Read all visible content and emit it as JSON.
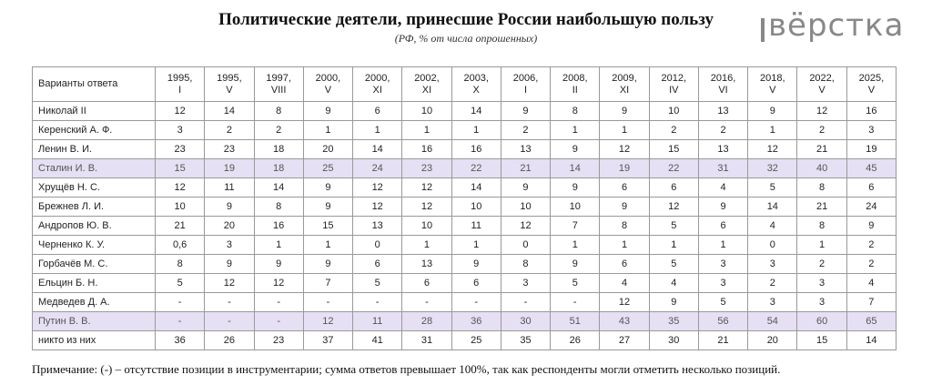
{
  "header": {
    "title": "Политические деятели, принесшие России наибольшую пользу",
    "subtitle": "(РФ, % от числа опрошенных)",
    "logo": "вёрстка"
  },
  "table": {
    "corner": "Варианты ответа",
    "columns": [
      {
        "year": "1995,",
        "wave": "I"
      },
      {
        "year": "1995,",
        "wave": "V"
      },
      {
        "year": "1997,",
        "wave": "VIII"
      },
      {
        "year": "2000,",
        "wave": "V"
      },
      {
        "year": "2000,",
        "wave": "XI"
      },
      {
        "year": "2002,",
        "wave": "XI"
      },
      {
        "year": "2003,",
        "wave": "X"
      },
      {
        "year": "2006,",
        "wave": "I"
      },
      {
        "year": "2008,",
        "wave": "II"
      },
      {
        "year": "2009,",
        "wave": "XI"
      },
      {
        "year": "2012,",
        "wave": "IV"
      },
      {
        "year": "2016,",
        "wave": "VI"
      },
      {
        "year": "2018,",
        "wave": "V"
      },
      {
        "year": "2022,",
        "wave": "V"
      },
      {
        "year": "2025,",
        "wave": "V"
      }
    ],
    "rows": [
      {
        "name": "Николай II",
        "highlight": false,
        "cells": [
          "12",
          "14",
          "8",
          "9",
          "6",
          "10",
          "14",
          "9",
          "8",
          "9",
          "10",
          "13",
          "9",
          "12",
          "16"
        ]
      },
      {
        "name": "Керенский А. Ф.",
        "highlight": false,
        "cells": [
          "3",
          "2",
          "2",
          "1",
          "1",
          "1",
          "1",
          "2",
          "1",
          "1",
          "2",
          "2",
          "1",
          "2",
          "3"
        ]
      },
      {
        "name": "Ленин В. И.",
        "highlight": false,
        "cells": [
          "23",
          "23",
          "18",
          "20",
          "14",
          "16",
          "16",
          "13",
          "9",
          "12",
          "15",
          "13",
          "12",
          "21",
          "19"
        ]
      },
      {
        "name": "Сталин И. В.",
        "highlight": true,
        "cells": [
          "15",
          "19",
          "18",
          "25",
          "24",
          "23",
          "22",
          "21",
          "14",
          "19",
          "22",
          "31",
          "32",
          "40",
          "45"
        ]
      },
      {
        "name": "Хрущёв Н. С.",
        "highlight": false,
        "cells": [
          "12",
          "11",
          "14",
          "9",
          "12",
          "12",
          "14",
          "9",
          "9",
          "6",
          "6",
          "4",
          "5",
          "8",
          "6"
        ]
      },
      {
        "name": "Брежнев Л. И.",
        "highlight": false,
        "cells": [
          "10",
          "9",
          "8",
          "9",
          "12",
          "12",
          "10",
          "10",
          "10",
          "9",
          "12",
          "9",
          "14",
          "21",
          "24"
        ]
      },
      {
        "name": "Андропов Ю. В.",
        "highlight": false,
        "cells": [
          "21",
          "20",
          "16",
          "15",
          "13",
          "10",
          "11",
          "12",
          "7",
          "8",
          "5",
          "6",
          "4",
          "8",
          "9"
        ]
      },
      {
        "name": "Черненко К. У.",
        "highlight": false,
        "cells": [
          "0,6",
          "3",
          "1",
          "1",
          "0",
          "1",
          "1",
          "0",
          "1",
          "1",
          "1",
          "1",
          "0",
          "1",
          "2"
        ]
      },
      {
        "name": "Горбачёв М. С.",
        "highlight": false,
        "cells": [
          "8",
          "9",
          "9",
          "9",
          "6",
          "13",
          "9",
          "8",
          "9",
          "6",
          "5",
          "3",
          "3",
          "2",
          "2"
        ]
      },
      {
        "name": "Ельцин Б. Н.",
        "highlight": false,
        "cells": [
          "5",
          "12",
          "12",
          "7",
          "5",
          "6",
          "6",
          "3",
          "5",
          "4",
          "4",
          "3",
          "2",
          "3",
          "4"
        ]
      },
      {
        "name": "Медведев Д. А.",
        "highlight": false,
        "cells": [
          "-",
          "-",
          "-",
          "-",
          "-",
          "-",
          "-",
          "-",
          "-",
          "12",
          "9",
          "5",
          "3",
          "3",
          "7"
        ]
      },
      {
        "name": "Путин В. В.",
        "highlight": true,
        "cells": [
          "-",
          "-",
          "-",
          "12",
          "11",
          "28",
          "36",
          "30",
          "51",
          "43",
          "35",
          "56",
          "54",
          "60",
          "65"
        ]
      },
      {
        "name": "никто из них",
        "highlight": false,
        "cells": [
          "36",
          "26",
          "23",
          "37",
          "41",
          "31",
          "25",
          "35",
          "26",
          "27",
          "30",
          "21",
          "20",
          "15",
          "14"
        ]
      }
    ]
  },
  "note": "Примечание: (-) – отсутствие позиции в инструментарии; сумма ответов превышает 100%, так как респонденты могли отметить несколько позиций."
}
